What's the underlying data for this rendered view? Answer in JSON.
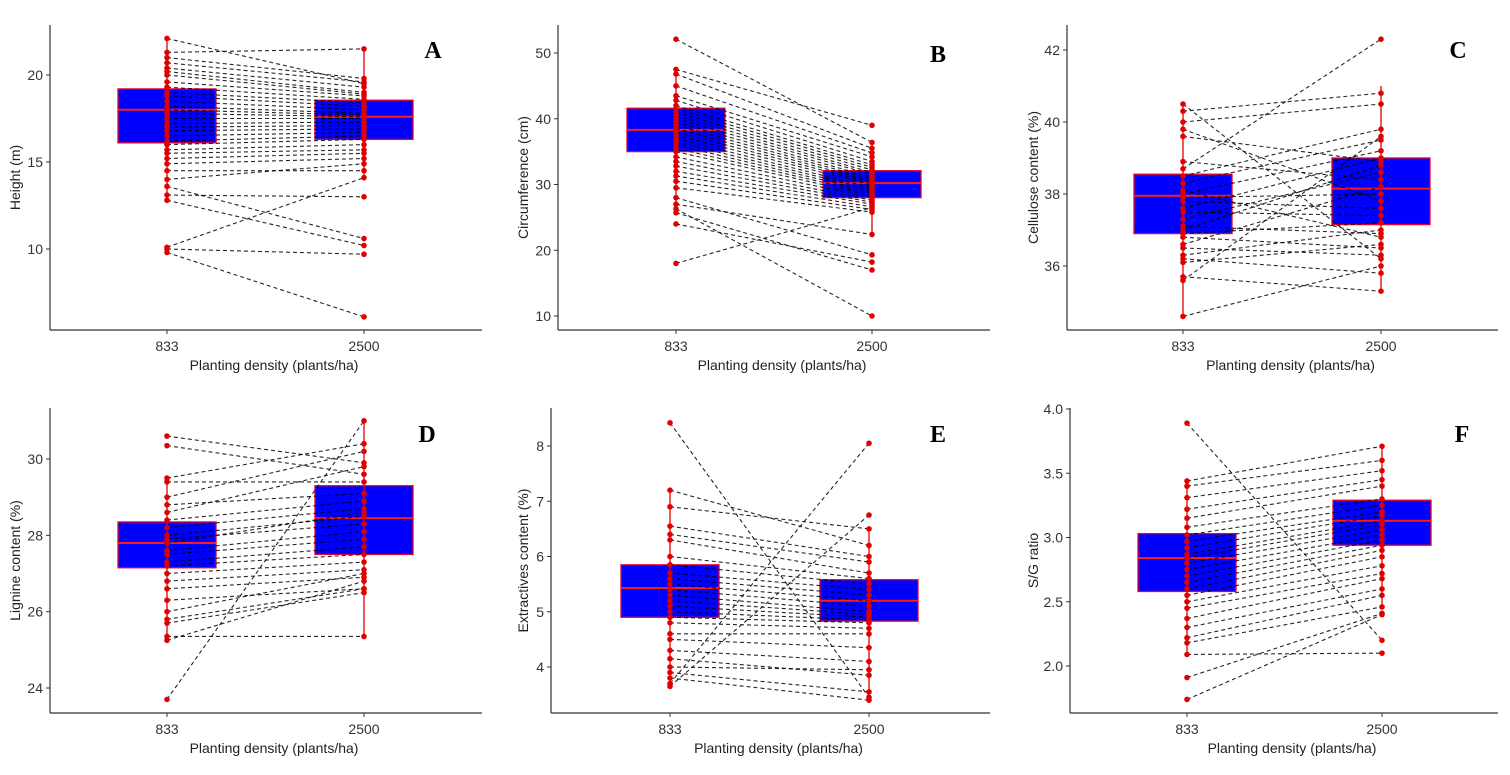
{
  "chart_data": [
    {
      "type": "box",
      "panel": "A",
      "title": "",
      "xlabel": "Planting density (plants/ha)",
      "ylabel": "Height (m)",
      "categories": [
        "833",
        "2500"
      ],
      "yticks": [
        10,
        15,
        20
      ],
      "ylim": [
        5.5,
        23.0
      ],
      "boxes": [
        {
          "category": "833",
          "q1": 16.1,
          "median": 18.0,
          "q3": 19.2,
          "whisker_low": 12.8,
          "whisker_high": 22.1
        },
        {
          "category": "2500",
          "q1": 16.3,
          "median": 17.6,
          "q3": 18.55,
          "whisker_low": 14.1,
          "whisker_high": 21.5
        }
      ],
      "pairs": [
        [
          22.1,
          19.5
        ],
        [
          21.3,
          21.5
        ],
        [
          21.0,
          19.8
        ],
        [
          20.7,
          19.6
        ],
        [
          20.4,
          19.3
        ],
        [
          20.2,
          19.0
        ],
        [
          20.0,
          18.9
        ],
        [
          19.6,
          18.8
        ],
        [
          19.3,
          18.6
        ],
        [
          19.0,
          18.4
        ],
        [
          18.8,
          18.2
        ],
        [
          18.5,
          18.0
        ],
        [
          18.2,
          17.8
        ],
        [
          18.0,
          17.7
        ],
        [
          17.8,
          17.6
        ],
        [
          17.5,
          17.5
        ],
        [
          17.2,
          17.3
        ],
        [
          17.0,
          17.1
        ],
        [
          16.8,
          16.9
        ],
        [
          16.5,
          16.7
        ],
        [
          16.2,
          16.5
        ],
        [
          16.0,
          16.3
        ],
        [
          15.7,
          16.0
        ],
        [
          15.5,
          15.7
        ],
        [
          15.2,
          15.5
        ],
        [
          14.9,
          15.2
        ],
        [
          14.5,
          14.5
        ],
        [
          14.0,
          14.9
        ],
        [
          13.6,
          10.6
        ],
        [
          13.1,
          13.0
        ],
        [
          12.8,
          10.2
        ],
        [
          10.1,
          14.1
        ],
        [
          10.0,
          9.7
        ],
        [
          9.8,
          6.1
        ]
      ],
      "annotation": "A"
    },
    {
      "type": "box",
      "panel": "B",
      "title": "",
      "xlabel": "Planting density (plants/ha)",
      "ylabel": "Circumference (cm)",
      "categories": [
        "833",
        "2500"
      ],
      "yticks": [
        10,
        20,
        30,
        40,
        50
      ],
      "ylim": [
        7.7,
        54.5
      ],
      "boxes": [
        {
          "category": "833",
          "q1": 35.0,
          "median": 38.3,
          "q3": 41.6,
          "whisker_low": 25.7,
          "whisker_high": 47.5
        },
        {
          "category": "2500",
          "q1": 28.0,
          "median": 30.2,
          "q3": 32.1,
          "whisker_low": 22.4,
          "whisker_high": 36.5
        }
      ],
      "pairs": [
        [
          52.1,
          36.4
        ],
        [
          47.5,
          39.0
        ],
        [
          46.8,
          35.5
        ],
        [
          45.0,
          34.8
        ],
        [
          43.5,
          34.2
        ],
        [
          42.8,
          33.5
        ],
        [
          42.0,
          33.0
        ],
        [
          41.5,
          32.6
        ],
        [
          41.0,
          32.2
        ],
        [
          40.5,
          31.8
        ],
        [
          40.0,
          31.5
        ],
        [
          39.5,
          31.1
        ],
        [
          39.0,
          30.8
        ],
        [
          38.5,
          30.5
        ],
        [
          38.0,
          30.2
        ],
        [
          37.5,
          29.9
        ],
        [
          37.0,
          29.5
        ],
        [
          36.5,
          29.2
        ],
        [
          36.0,
          28.9
        ],
        [
          35.5,
          28.6
        ],
        [
          35.0,
          28.3
        ],
        [
          34.2,
          28.0
        ],
        [
          33.5,
          27.6
        ],
        [
          32.8,
          27.3
        ],
        [
          32.0,
          27.0
        ],
        [
          31.3,
          26.6
        ],
        [
          30.5,
          26.2
        ],
        [
          29.5,
          25.8
        ],
        [
          28.0,
          19.3
        ],
        [
          27.0,
          22.4
        ],
        [
          25.7,
          17.0
        ],
        [
          24.0,
          18.2
        ],
        [
          18.0,
          26.5
        ],
        [
          26.3,
          10.0
        ]
      ],
      "annotation": "B"
    },
    {
      "type": "box",
      "panel": "C",
      "title": "",
      "xlabel": "Planting density (plants/ha)",
      "ylabel": "Cellulose content (%)",
      "categories": [
        "833",
        "2500"
      ],
      "yticks": [
        36,
        38,
        40,
        42
      ],
      "ylim": [
        34.1,
        42.8
      ],
      "boxes": [
        {
          "category": "833",
          "q1": 36.9,
          "median": 37.95,
          "q3": 38.55,
          "whisker_low": 34.6,
          "whisker_high": 40.5
        },
        {
          "category": "2500",
          "q1": 37.15,
          "median": 38.15,
          "q3": 39.0,
          "whisker_low": 35.3,
          "whisker_high": 41.0
        }
      ],
      "pairs": [
        [
          40.5,
          36.2
        ],
        [
          40.3,
          40.8
        ],
        [
          40.0,
          40.5
        ],
        [
          39.8,
          37.8
        ],
        [
          39.6,
          38.9
        ],
        [
          38.9,
          38.4
        ],
        [
          38.7,
          42.3
        ],
        [
          38.5,
          39.8
        ],
        [
          38.3,
          39.5
        ],
        [
          38.1,
          36.8
        ],
        [
          38.0,
          39.2
        ],
        [
          37.9,
          38.0
        ],
        [
          37.8,
          37.6
        ],
        [
          37.6,
          39.0
        ],
        [
          37.5,
          37.4
        ],
        [
          37.3,
          38.6
        ],
        [
          37.1,
          36.9
        ],
        [
          37.0,
          38.8
        ],
        [
          36.9,
          37.2
        ],
        [
          36.8,
          36.5
        ],
        [
          36.6,
          38.2
        ],
        [
          36.5,
          36.3
        ],
        [
          36.3,
          37.0
        ],
        [
          36.2,
          35.8
        ],
        [
          36.1,
          36.6
        ],
        [
          35.7,
          35.3
        ],
        [
          35.6,
          39.6
        ],
        [
          34.6,
          36.0
        ]
      ],
      "annotation": "C"
    },
    {
      "type": "box",
      "panel": "D",
      "title": "",
      "xlabel": "Planting density (plants/ha)",
      "ylabel": "Lignine content (%)",
      "categories": [
        "833",
        "2500"
      ],
      "yticks": [
        24,
        26,
        28,
        30
      ],
      "ylim": [
        23.4,
        31.3
      ],
      "boxes": [
        {
          "category": "833",
          "q1": 27.15,
          "median": 27.8,
          "q3": 28.35,
          "whisker_low": 25.2,
          "whisker_high": 29.5
        },
        {
          "category": "2500",
          "q1": 27.5,
          "median": 28.45,
          "q3": 29.3,
          "whisker_low": 25.35,
          "whisker_high": 31.0
        }
      ],
      "pairs": [
        [
          30.6,
          29.9
        ],
        [
          30.35,
          29.6
        ],
        [
          29.5,
          30.4
        ],
        [
          29.4,
          29.4
        ],
        [
          29.0,
          30.2
        ],
        [
          28.8,
          29.1
        ],
        [
          28.6,
          29.8
        ],
        [
          28.4,
          28.9
        ],
        [
          28.2,
          28.7
        ],
        [
          28.0,
          28.5
        ],
        [
          27.9,
          28.3
        ],
        [
          27.8,
          28.6
        ],
        [
          27.6,
          28.1
        ],
        [
          27.5,
          27.9
        ],
        [
          27.3,
          27.7
        ],
        [
          27.2,
          27.5
        ],
        [
          27.0,
          27.3
        ],
        [
          26.8,
          27.1
        ],
        [
          26.6,
          26.9
        ],
        [
          26.3,
          26.6
        ],
        [
          26.0,
          27.0
        ],
        [
          25.8,
          26.6
        ],
        [
          25.7,
          26.5
        ],
        [
          25.35,
          25.35
        ],
        [
          25.25,
          26.8
        ],
        [
          23.7,
          31.0
        ]
      ],
      "annotation": "D"
    },
    {
      "type": "box",
      "panel": "E",
      "title": "",
      "xlabel": "Planting density (plants/ha)",
      "ylabel": "Extractives content (%)",
      "categories": [
        "833",
        "2500"
      ],
      "yticks": [
        4,
        5,
        6,
        7,
        8
      ],
      "ylim": [
        3.2,
        8.7
      ],
      "boxes": [
        {
          "category": "833",
          "q1": 4.9,
          "median": 5.43,
          "q3": 5.85,
          "whisker_low": 3.65,
          "whisker_high": 7.2
        },
        {
          "category": "2500",
          "q1": 4.83,
          "median": 5.2,
          "q3": 5.58,
          "whisker_low": 3.45,
          "whisker_high": 6.5
        }
      ],
      "pairs": [
        [
          8.42,
          3.45
        ],
        [
          7.2,
          6.2
        ],
        [
          6.9,
          6.5
        ],
        [
          6.55,
          6.0
        ],
        [
          6.4,
          5.9
        ],
        [
          6.3,
          5.7
        ],
        [
          6.0,
          5.6
        ],
        [
          5.85,
          5.5
        ],
        [
          5.7,
          5.4
        ],
        [
          5.6,
          5.3
        ],
        [
          5.5,
          5.2
        ],
        [
          5.4,
          5.1
        ],
        [
          5.3,
          5.0
        ],
        [
          5.2,
          4.95
        ],
        [
          5.1,
          4.9
        ],
        [
          5.0,
          4.85
        ],
        [
          4.9,
          4.8
        ],
        [
          4.8,
          4.7
        ],
        [
          4.6,
          4.6
        ],
        [
          4.5,
          4.35
        ],
        [
          4.3,
          4.1
        ],
        [
          4.15,
          3.85
        ],
        [
          4.0,
          3.95
        ],
        [
          3.9,
          3.55
        ],
        [
          3.8,
          3.4
        ],
        [
          3.7,
          8.05
        ],
        [
          3.65,
          6.75
        ]
      ],
      "annotation": "E"
    },
    {
      "type": "box",
      "panel": "F",
      "title": "",
      "xlabel": "Planting density (plants/ha)",
      "ylabel": "S/G ratio",
      "categories": [
        "833",
        "2500"
      ],
      "yticks": [
        "2.0",
        "2.5",
        "3.0",
        "3.5",
        "4.0"
      ],
      "ylim": [
        1.65,
        4.02
      ],
      "boxes": [
        {
          "category": "833",
          "q1": 2.58,
          "median": 2.84,
          "q3": 3.03,
          "whisker_low": 2.09,
          "whisker_high": 3.44
        },
        {
          "category": "2500",
          "q1": 2.94,
          "median": 3.13,
          "q3": 3.29,
          "whisker_low": 2.46,
          "whisker_high": 3.71
        }
      ],
      "pairs": [
        [
          3.89,
          2.2
        ],
        [
          3.44,
          3.71
        ],
        [
          3.4,
          3.6
        ],
        [
          3.31,
          3.52
        ],
        [
          3.22,
          3.45
        ],
        [
          3.15,
          3.4
        ],
        [
          3.08,
          3.3
        ],
        [
          3.02,
          3.25
        ],
        [
          2.97,
          3.2
        ],
        [
          2.92,
          3.17
        ],
        [
          2.87,
          3.13
        ],
        [
          2.84,
          3.1
        ],
        [
          2.8,
          3.06
        ],
        [
          2.75,
          3.02
        ],
        [
          2.7,
          2.98
        ],
        [
          2.65,
          2.94
        ],
        [
          2.6,
          2.9
        ],
        [
          2.55,
          2.85
        ],
        [
          2.5,
          2.78
        ],
        [
          2.45,
          2.72
        ],
        [
          2.37,
          2.68
        ],
        [
          2.3,
          2.6
        ],
        [
          2.22,
          2.55
        ],
        [
          2.18,
          2.46
        ],
        [
          2.09,
          2.1
        ],
        [
          1.91,
          2.41
        ],
        [
          1.74,
          2.4
        ]
      ],
      "annotation": "F"
    }
  ]
}
